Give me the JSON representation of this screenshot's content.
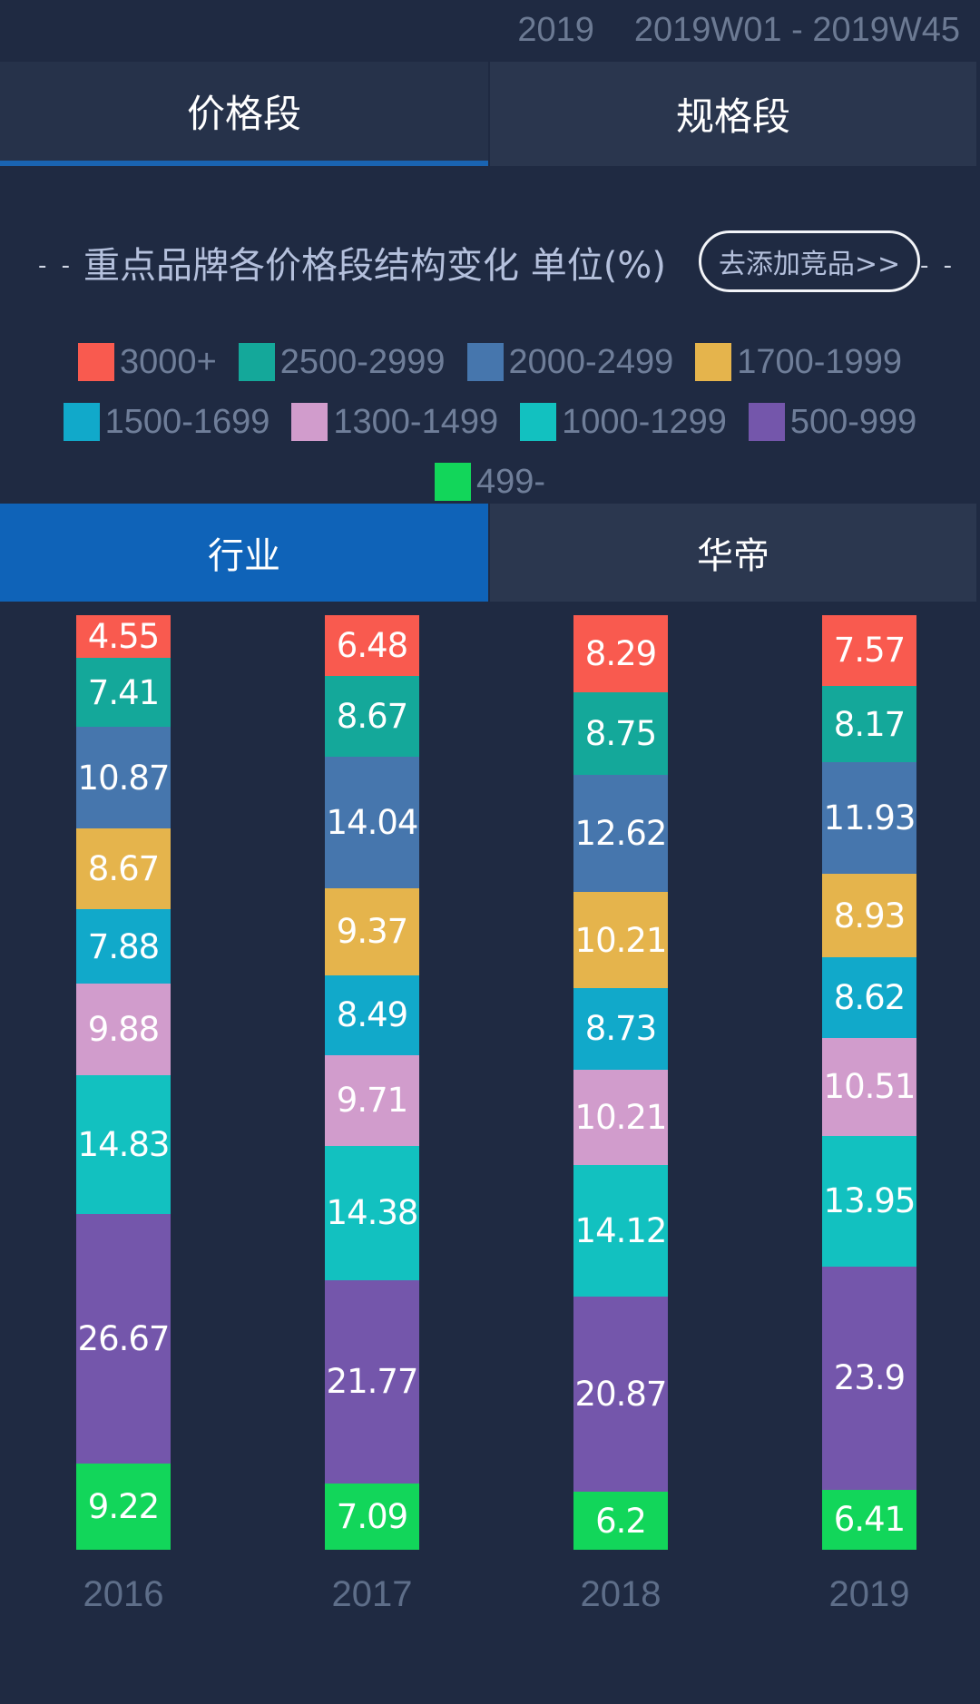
{
  "header": {
    "year": "2019",
    "week_range": "2019W01 - 2019W45"
  },
  "top_tabs": [
    {
      "label": "价格段",
      "active": true
    },
    {
      "label": "规格段",
      "active": false
    }
  ],
  "section": {
    "left_dash": "- -",
    "right_dash": "- -",
    "title": "重点品牌各价格段结构变化 单位(%)",
    "add_button": "去添加竞品>>"
  },
  "sub_tabs": [
    {
      "label": "行业",
      "active": true
    },
    {
      "label": "华帝",
      "active": false
    }
  ],
  "legend": [
    {
      "label": "3000+",
      "color": "#f95a4f"
    },
    {
      "label": "2500-2999",
      "color": "#14a89a"
    },
    {
      "label": "2000-2499",
      "color": "#4676ad"
    },
    {
      "label": "1700-1999",
      "color": "#e5b44c"
    },
    {
      "label": "1500-1699",
      "color": "#11a9ca"
    },
    {
      "label": "1300-1499",
      "color": "#d19ccc"
    },
    {
      "label": "1000-1299",
      "color": "#12c1c0"
    },
    {
      "label": "500-999",
      "color": "#7456ab"
    },
    {
      "label": "499-",
      "color": "#12d65a"
    }
  ],
  "chart_data": {
    "type": "bar",
    "stacked": true,
    "normalized": true,
    "title": "重点品牌各价格段结构变化 单位(%)",
    "xlabel": "",
    "ylabel": "",
    "categories": [
      "2016",
      "2017",
      "2018",
      "2019"
    ],
    "legend_position": "top",
    "grid": false,
    "series": [
      {
        "name": "3000+",
        "color": "#f95a4f",
        "values": [
          4.55,
          6.48,
          8.29,
          7.57
        ]
      },
      {
        "name": "2500-2999",
        "color": "#14a89a",
        "values": [
          7.41,
          8.67,
          8.75,
          8.17
        ]
      },
      {
        "name": "2000-2499",
        "color": "#4676ad",
        "values": [
          10.87,
          14.04,
          12.62,
          11.93
        ]
      },
      {
        "name": "1700-1999",
        "color": "#e5b44c",
        "values": [
          8.67,
          9.37,
          10.21,
          8.93
        ]
      },
      {
        "name": "1500-1699",
        "color": "#11a9ca",
        "values": [
          7.88,
          8.49,
          8.73,
          8.62
        ]
      },
      {
        "name": "1300-1499",
        "color": "#d19ccc",
        "values": [
          9.88,
          9.71,
          10.21,
          10.51
        ]
      },
      {
        "name": "1000-1299",
        "color": "#12c1c0",
        "values": [
          14.83,
          14.38,
          14.12,
          13.95
        ]
      },
      {
        "name": "500-999",
        "color": "#7456ab",
        "values": [
          26.67,
          21.77,
          20.87,
          23.9
        ]
      },
      {
        "name": "499-",
        "color": "#12d65a",
        "values": [
          9.22,
          7.09,
          6.2,
          6.41
        ]
      }
    ]
  }
}
